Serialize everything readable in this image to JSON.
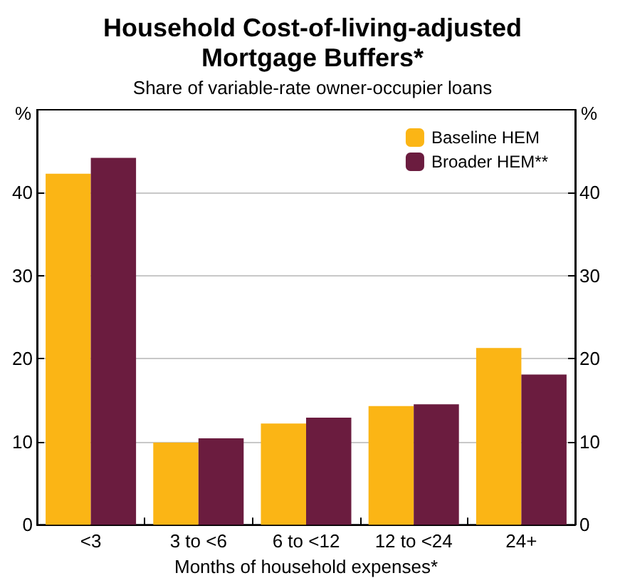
{
  "chart_data": {
    "type": "bar",
    "title": "Household Cost-of-living-adjusted\nMortgage Buffers*",
    "subtitle": "Share of variable-rate owner-occupier loans",
    "xlabel": "Months of household expenses*",
    "ylabel": "%",
    "y2label": "%",
    "categories": [
      "<3",
      "3 to <6",
      "6 to <12",
      "12 to <24",
      "24+"
    ],
    "series": [
      {
        "name": "Baseline HEM",
        "color": "#fbb515",
        "values": [
          42.3,
          9.9,
          12.2,
          14.3,
          21.3
        ]
      },
      {
        "name": "Broader HEM**",
        "color": "#6b1c3f",
        "values": [
          44.2,
          10.4,
          12.9,
          14.5,
          18.1
        ]
      }
    ],
    "ylim": [
      0,
      50
    ],
    "yticks": [
      0,
      10,
      20,
      30,
      40
    ],
    "y2lim": [
      0,
      50
    ],
    "y2ticks": [
      0,
      10,
      20,
      30,
      40
    ],
    "grid": "y",
    "legend": "top right"
  }
}
